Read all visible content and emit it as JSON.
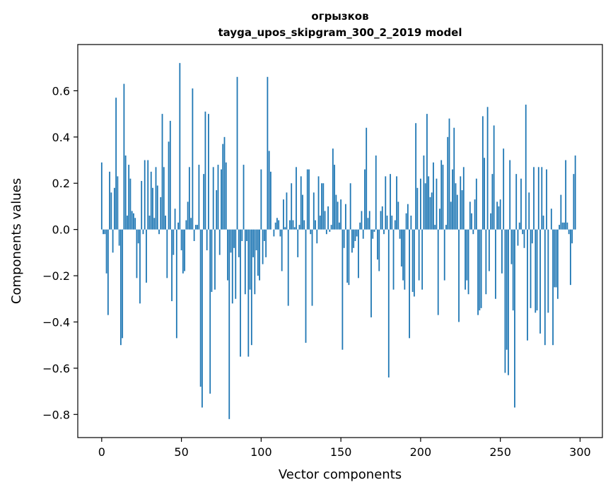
{
  "chart_data": {
    "type": "bar",
    "title_line1": "огрызков",
    "title_line2": "tayga_upos_skipgram_300_2_2019 model",
    "xlabel": "Vector components",
    "ylabel": "Components values",
    "xlim": [
      -15,
      314
    ],
    "ylim": [
      -0.9,
      0.8
    ],
    "xticks": [
      0,
      50,
      100,
      150,
      200,
      250,
      300
    ],
    "xtick_labels": [
      "0",
      "50",
      "100",
      "150",
      "200",
      "250",
      "300"
    ],
    "yticks": [
      -0.8,
      -0.6,
      -0.4,
      -0.2,
      0.0,
      0.2,
      0.4,
      0.6
    ],
    "ytick_labels": [
      "−0.8",
      "−0.6",
      "−0.4",
      "−0.2",
      "0.0",
      "0.2",
      "0.4",
      "0.6"
    ],
    "bar_color": "#1f77b4",
    "values": [
      0.29,
      -0.02,
      -0.02,
      -0.19,
      -0.37,
      0.25,
      0.16,
      -0.1,
      0.18,
      0.57,
      0.23,
      -0.07,
      -0.5,
      -0.47,
      0.63,
      0.32,
      0.06,
      0.28,
      0.22,
      0.08,
      0.07,
      0.05,
      -0.21,
      -0.06,
      -0.32,
      0.21,
      -0.02,
      0.3,
      -0.23,
      0.3,
      0.06,
      0.25,
      0.18,
      0.05,
      0.27,
      0.19,
      -0.02,
      0.14,
      0.5,
      0.27,
      0.06,
      -0.21,
      0.38,
      0.47,
      -0.31,
      -0.11,
      0.09,
      -0.47,
      0.03,
      0.72,
      -0.09,
      -0.19,
      -0.18,
      0.04,
      0.12,
      0.27,
      0.05,
      0.61,
      -0.05,
      0.02,
      0.02,
      0.28,
      -0.68,
      -0.77,
      0.24,
      0.51,
      -0.09,
      0.5,
      -0.71,
      -0.27,
      0.27,
      -0.26,
      0.17,
      0.28,
      -0.11,
      0.26,
      0.37,
      0.4,
      0.29,
      -0.22,
      -0.82,
      -0.1,
      -0.32,
      -0.08,
      -0.3,
      0.66,
      -0.12,
      -0.55,
      -0.05,
      0.28,
      -0.28,
      -0.05,
      -0.55,
      -0.26,
      -0.5,
      -0.12,
      -0.28,
      -0.09,
      -0.2,
      -0.22,
      0.26,
      -0.15,
      -0.05,
      -0.12,
      0.66,
      0.34,
      0.25,
      0.0,
      -0.03,
      0.03,
      0.05,
      0.04,
      -0.03,
      -0.18,
      0.13,
      0.01,
      0.16,
      -0.33,
      0.04,
      0.2,
      0.04,
      0.01,
      0.27,
      -0.12,
      0.02,
      0.23,
      0.15,
      0.04,
      -0.49,
      0.26,
      0.26,
      -0.02,
      -0.33,
      0.16,
      0.04,
      -0.06,
      0.23,
      0.06,
      0.2,
      0.2,
      0.08,
      -0.02,
      0.1,
      -0.01,
      0.02,
      0.35,
      0.28,
      0.15,
      0.12,
      0.03,
      0.13,
      -0.52,
      -0.08,
      0.11,
      -0.23,
      -0.24,
      0.2,
      -0.1,
      -0.08,
      -0.05,
      -0.03,
      -0.21,
      0.03,
      0.08,
      -0.04,
      0.26,
      0.44,
      0.05,
      0.08,
      -0.38,
      -0.04,
      -0.01,
      0.32,
      -0.13,
      -0.18,
      0.08,
      0.1,
      -0.02,
      0.23,
      0.06,
      -0.64,
      0.24,
      0.06,
      -0.26,
      0.04,
      0.23,
      0.12,
      -0.04,
      -0.16,
      -0.22,
      -0.26,
      0.07,
      0.11,
      -0.47,
      0.06,
      -0.27,
      -0.29,
      0.46,
      0.18,
      -0.22,
      0.22,
      -0.26,
      0.32,
      0.2,
      0.5,
      0.23,
      0.14,
      0.16,
      0.29,
      0.02,
      0.22,
      -0.37,
      0.09,
      0.3,
      0.28,
      -0.22,
      0.02,
      0.4,
      0.48,
      0.12,
      0.26,
      0.44,
      0.2,
      0.15,
      -0.4,
      0.23,
      0.17,
      0.27,
      -0.26,
      -0.22,
      -0.28,
      0.12,
      0.07,
      -0.02,
      0.13,
      0.22,
      -0.37,
      -0.35,
      -0.34,
      0.49,
      0.31,
      -0.28,
      0.53,
      -0.18,
      0.07,
      0.24,
      0.45,
      -0.3,
      0.12,
      0.1,
      0.13,
      -0.19,
      0.35,
      -0.62,
      -0.52,
      -0.63,
      0.3,
      -0.15,
      -0.35,
      -0.77,
      0.24,
      -0.07,
      0.03,
      0.22,
      -0.02,
      -0.08,
      0.54,
      -0.48,
      0.16,
      -0.34,
      -0.06,
      0.27,
      -0.36,
      -0.35,
      0.27,
      -0.45,
      0.27,
      0.06,
      -0.5,
      0.26,
      -0.36,
      0.0,
      0.09,
      -0.5,
      -0.25,
      -0.25,
      -0.3,
      0.02,
      0.15,
      0.03,
      0.03,
      0.3,
      0.03,
      -0.02,
      -0.24,
      -0.06,
      0.24,
      0.32
    ]
  }
}
